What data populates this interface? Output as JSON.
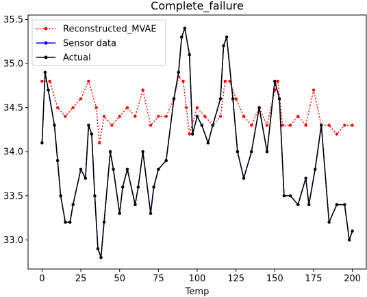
{
  "chart_data": {
    "type": "line",
    "title": "Complete_failure",
    "xlabel": "Temp",
    "ylabel": "",
    "xlim": [
      -9,
      209
    ],
    "ylim": [
      32.67,
      35.55
    ],
    "xticks": [
      "0",
      "25",
      "50",
      "75",
      "100",
      "125",
      "150",
      "175",
      "200"
    ],
    "xtick_values": [
      0,
      25,
      50,
      75,
      100,
      125,
      150,
      175,
      200
    ],
    "yticks": [
      "33.0",
      "33.5",
      "34.0",
      "34.5",
      "35.0",
      "35.5"
    ],
    "ytick_values": [
      33.0,
      33.5,
      34.0,
      34.5,
      35.0,
      35.5
    ],
    "legend_position": "top-left",
    "grid": false,
    "series": [
      {
        "name": "Reconstructed_MVAE",
        "color": "#ff0000",
        "style": "dotted",
        "marker": "circle",
        "x": [
          0,
          5,
          10,
          15,
          20,
          25,
          30,
          35,
          37,
          40,
          45,
          50,
          55,
          60,
          65,
          70,
          75,
          80,
          85,
          88,
          91,
          93,
          95,
          100,
          105,
          110,
          115,
          118,
          121,
          125,
          130,
          135,
          140,
          145,
          150,
          152,
          155,
          160,
          165,
          170,
          175,
          180,
          185,
          190,
          195,
          200
        ],
        "y": [
          34.8,
          34.8,
          34.5,
          34.4,
          34.5,
          34.6,
          34.8,
          34.5,
          34.1,
          34.4,
          34.3,
          34.4,
          34.5,
          34.4,
          34.7,
          34.3,
          34.4,
          34.4,
          34.6,
          34.85,
          34.8,
          34.5,
          34.2,
          34.5,
          34.4,
          34.3,
          34.4,
          34.8,
          34.8,
          34.6,
          34.4,
          34.3,
          34.5,
          34.3,
          34.7,
          34.8,
          34.3,
          34.3,
          34.4,
          34.3,
          34.7,
          34.3,
          34.3,
          34.2,
          34.3,
          34.3
        ]
      },
      {
        "name": "Sensor data",
        "color": "#0000ff",
        "style": "solid",
        "marker": "circle",
        "x": [
          0,
          2,
          4,
          8,
          10,
          12,
          15,
          18,
          20,
          25,
          28,
          30,
          32,
          34,
          36,
          38,
          40,
          44,
          46,
          50,
          52,
          55,
          60,
          62,
          65,
          70,
          72,
          75,
          80,
          85,
          88,
          90,
          92,
          95,
          97,
          100,
          103,
          107,
          110,
          115,
          117,
          119,
          123,
          126,
          130,
          135,
          140,
          145,
          150,
          153,
          156,
          160,
          165,
          170,
          172,
          176,
          180,
          185,
          190,
          195,
          198,
          200
        ],
        "y": [
          34.1,
          34.9,
          34.7,
          34.3,
          33.9,
          33.5,
          33.2,
          33.2,
          33.4,
          33.8,
          33.7,
          34.3,
          34.2,
          33.5,
          32.9,
          32.8,
          33.2,
          34.0,
          33.8,
          33.3,
          33.6,
          33.8,
          33.4,
          33.6,
          34.0,
          33.3,
          33.6,
          33.8,
          33.9,
          34.6,
          34.9,
          35.3,
          35.4,
          35.1,
          34.2,
          34.4,
          34.3,
          34.1,
          34.3,
          34.6,
          35.2,
          35.3,
          34.6,
          34.0,
          33.7,
          34.0,
          34.5,
          34.0,
          34.8,
          34.6,
          33.5,
          33.5,
          33.4,
          33.7,
          33.4,
          33.8,
          34.3,
          33.2,
          33.4,
          33.4,
          33.0,
          33.1
        ]
      },
      {
        "name": "Actual",
        "color": "#000000",
        "style": "solid",
        "marker": "circle",
        "x": [
          0,
          2,
          4,
          8,
          10,
          12,
          15,
          18,
          20,
          25,
          28,
          30,
          32,
          34,
          36,
          38,
          40,
          44,
          46,
          50,
          52,
          55,
          60,
          62,
          65,
          70,
          72,
          75,
          80,
          85,
          88,
          90,
          92,
          95,
          97,
          100,
          103,
          107,
          110,
          115,
          117,
          119,
          123,
          126,
          130,
          135,
          140,
          145,
          150,
          153,
          156,
          160,
          165,
          170,
          172,
          176,
          180,
          185,
          190,
          195,
          198,
          200
        ],
        "y": [
          34.1,
          34.9,
          34.7,
          34.3,
          33.9,
          33.5,
          33.2,
          33.2,
          33.4,
          33.8,
          33.7,
          34.3,
          34.2,
          33.5,
          32.9,
          32.8,
          33.2,
          34.0,
          33.8,
          33.3,
          33.6,
          33.8,
          33.4,
          33.6,
          34.0,
          33.3,
          33.6,
          33.8,
          33.9,
          34.6,
          34.9,
          35.3,
          35.4,
          35.1,
          34.2,
          34.4,
          34.3,
          34.1,
          34.3,
          34.6,
          35.2,
          35.3,
          34.6,
          34.0,
          33.7,
          34.0,
          34.5,
          34.0,
          34.8,
          34.6,
          33.5,
          33.5,
          33.4,
          33.7,
          33.4,
          33.8,
          34.3,
          33.2,
          33.4,
          33.4,
          33.0,
          33.1
        ]
      }
    ]
  }
}
